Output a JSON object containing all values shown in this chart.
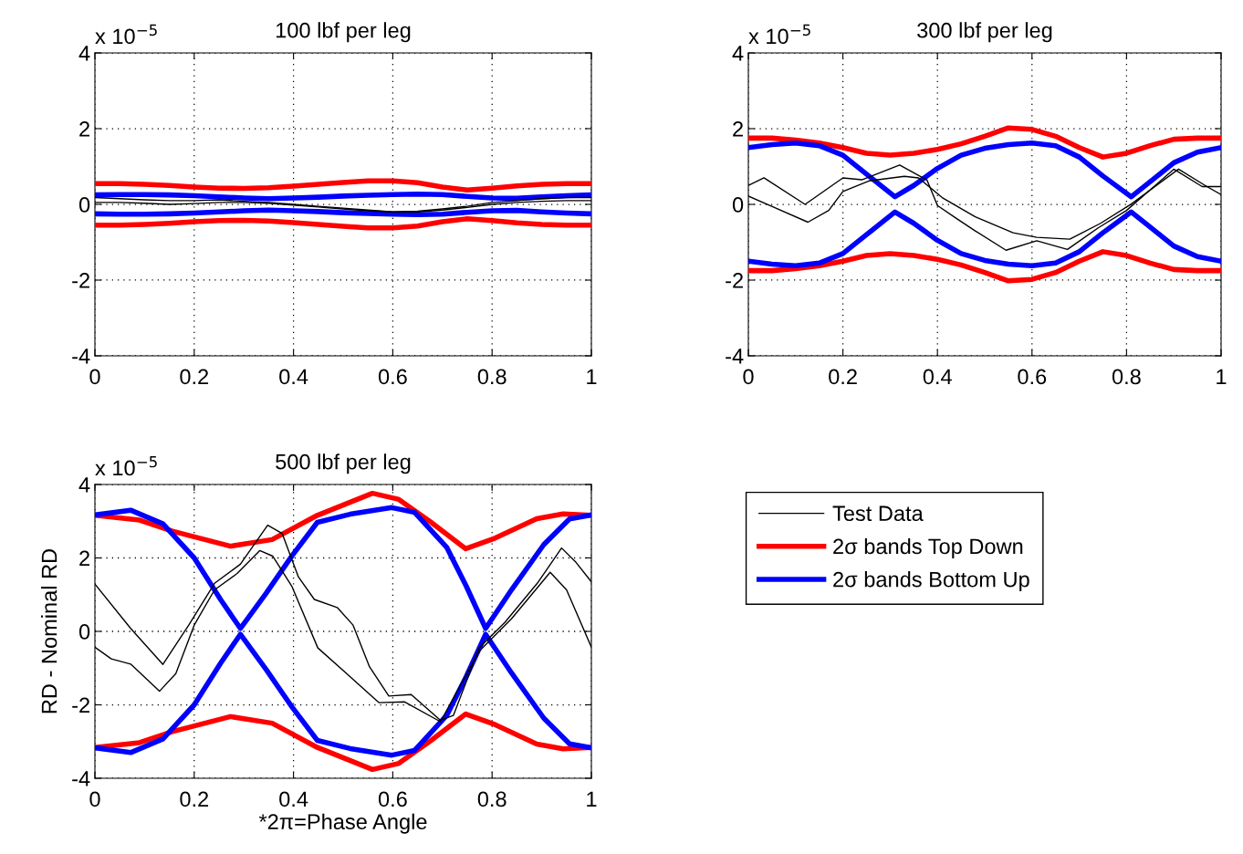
{
  "chart_data": [
    {
      "type": "line",
      "title": "100 lbf per leg",
      "annotations": [
        "x 10$^{−5}$"
      ],
      "xlim": [
        0,
        1
      ],
      "xticks": [
        0,
        0.2,
        0.4,
        0.6,
        0.8,
        1
      ],
      "ylim": [
        -4,
        4
      ],
      "yticks": [
        -4,
        -2,
        0,
        2,
        4
      ],
      "grid": true,
      "legend": false,
      "marker": "none",
      "line_style": "solid",
      "x": [
        0,
        0.05,
        0.1,
        0.15,
        0.2,
        0.25,
        0.3,
        0.35,
        0.4,
        0.45,
        0.5,
        0.55,
        0.6,
        0.65,
        0.7,
        0.75,
        0.8,
        0.85,
        0.9,
        0.95,
        1
      ],
      "series": [
        {
          "color": "#000000",
          "values": [
            0.18,
            0.15,
            0.12,
            0.1,
            0.1,
            0.12,
            0.08,
            0.05,
            0.0,
            -0.05,
            -0.1,
            -0.15,
            -0.2,
            -0.18,
            -0.12,
            -0.05,
            0.05,
            0.1,
            0.15,
            0.18,
            0.18
          ]
        },
        {
          "color": "#000000",
          "values": [
            0.05,
            0.05,
            0.03,
            0.0,
            0.02,
            0.05,
            0.05,
            0.03,
            -0.02,
            -0.07,
            -0.12,
            -0.17,
            -0.2,
            -0.2,
            -0.15,
            -0.08,
            0.0,
            0.05,
            0.08,
            0.1,
            0.1
          ]
        },
        {
          "color": "#ff0000",
          "values": [
            0.55,
            0.55,
            0.53,
            0.5,
            0.46,
            0.43,
            0.42,
            0.44,
            0.48,
            0.53,
            0.58,
            0.62,
            0.62,
            0.57,
            0.46,
            0.38,
            0.43,
            0.49,
            0.53,
            0.55,
            0.55
          ]
        },
        {
          "color": "#ff0000",
          "values": [
            -0.55,
            -0.55,
            -0.53,
            -0.5,
            -0.46,
            -0.43,
            -0.42,
            -0.44,
            -0.48,
            -0.53,
            -0.58,
            -0.62,
            -0.62,
            -0.57,
            -0.46,
            -0.38,
            -0.43,
            -0.49,
            -0.53,
            -0.55,
            -0.55
          ]
        },
        {
          "color": "#0000ff",
          "values": [
            0.25,
            0.26,
            0.26,
            0.25,
            0.23,
            0.2,
            0.17,
            0.15,
            0.17,
            0.19,
            0.22,
            0.24,
            0.26,
            0.27,
            0.26,
            0.21,
            0.17,
            0.16,
            0.2,
            0.23,
            0.25
          ]
        },
        {
          "color": "#0000ff",
          "values": [
            -0.25,
            -0.26,
            -0.26,
            -0.25,
            -0.23,
            -0.2,
            -0.17,
            -0.15,
            -0.17,
            -0.19,
            -0.22,
            -0.24,
            -0.26,
            -0.27,
            -0.26,
            -0.21,
            -0.17,
            -0.16,
            -0.2,
            -0.23,
            -0.25
          ]
        }
      ]
    },
    {
      "type": "line",
      "title": "300 lbf per leg",
      "annotations": [
        "x 10$^{−5}$"
      ],
      "xlim": [
        0,
        1
      ],
      "xticks": [
        0,
        0.2,
        0.4,
        0.6,
        0.8,
        1
      ],
      "ylim": [
        -4,
        4
      ],
      "yticks": [
        -4,
        -2,
        0,
        2,
        4
      ],
      "grid": true,
      "legend": false,
      "marker": "none",
      "line_style": "solid",
      "x": [
        0,
        0.05,
        0.1,
        0.15,
        0.2,
        0.25,
        0.3,
        0.35,
        0.4,
        0.45,
        0.5,
        0.55,
        0.6,
        0.65,
        0.7,
        0.75,
        0.8,
        0.85,
        0.9,
        0.95,
        1
      ],
      "series": [
        {
          "color": "#000000",
          "x": [
            0,
            0.033,
            0.12,
            0.2,
            0.24,
            0.32,
            0.378,
            0.4,
            0.44,
            0.48,
            0.545,
            0.61,
            0.675,
            0.74,
            0.8,
            0.9,
            0.96,
            1
          ],
          "values": [
            0.5,
            0.7,
            0.0,
            0.7,
            0.65,
            1.04,
            0.64,
            -0.03,
            -0.37,
            -0.7,
            -1.21,
            -0.96,
            -1.19,
            -0.62,
            -0.16,
            0.93,
            0.47,
            0.47
          ]
        },
        {
          "color": "#000000",
          "x": [
            0,
            0.055,
            0.126,
            0.17,
            0.2,
            0.255,
            0.33,
            0.36,
            0.41,
            0.48,
            0.56,
            0.61,
            0.68,
            0.745,
            0.81,
            0.91,
            0.97,
            1
          ],
          "values": [
            0.22,
            -0.08,
            -0.47,
            -0.16,
            0.34,
            0.62,
            0.74,
            0.7,
            0.18,
            -0.33,
            -0.75,
            -0.87,
            -0.92,
            -0.5,
            0.01,
            0.93,
            0.47,
            0.26
          ]
        },
        {
          "color": "#ff0000",
          "values": [
            1.75,
            1.75,
            1.7,
            1.62,
            1.5,
            1.35,
            1.3,
            1.35,
            1.45,
            1.6,
            1.8,
            2.02,
            1.98,
            1.8,
            1.5,
            1.25,
            1.35,
            1.55,
            1.72,
            1.75,
            1.75
          ]
        },
        {
          "color": "#ff0000",
          "values": [
            -1.75,
            -1.75,
            -1.7,
            -1.62,
            -1.5,
            -1.35,
            -1.3,
            -1.35,
            -1.45,
            -1.6,
            -1.8,
            -2.02,
            -1.98,
            -1.8,
            -1.5,
            -1.25,
            -1.35,
            -1.55,
            -1.72,
            -1.75,
            -1.75
          ]
        },
        {
          "color": "#0000ff",
          "x": [
            0,
            0.05,
            0.1,
            0.15,
            0.2,
            0.25,
            0.31,
            0.35,
            0.4,
            0.45,
            0.5,
            0.55,
            0.6,
            0.65,
            0.7,
            0.75,
            0.81,
            0.85,
            0.9,
            0.95,
            1
          ],
          "values": [
            1.5,
            1.58,
            1.62,
            1.55,
            1.3,
            0.8,
            0.2,
            0.5,
            0.95,
            1.3,
            1.48,
            1.58,
            1.62,
            1.55,
            1.25,
            0.75,
            0.2,
            0.6,
            1.1,
            1.38,
            1.5
          ]
        },
        {
          "color": "#0000ff",
          "x": [
            0,
            0.05,
            0.1,
            0.15,
            0.2,
            0.25,
            0.31,
            0.35,
            0.4,
            0.45,
            0.5,
            0.55,
            0.6,
            0.65,
            0.7,
            0.75,
            0.81,
            0.85,
            0.9,
            0.95,
            1
          ],
          "values": [
            -1.5,
            -1.58,
            -1.62,
            -1.55,
            -1.3,
            -0.8,
            -0.2,
            -0.5,
            -0.95,
            -1.3,
            -1.48,
            -1.58,
            -1.62,
            -1.55,
            -1.25,
            -0.75,
            -0.2,
            -0.6,
            -1.1,
            -1.38,
            -1.5
          ]
        }
      ]
    },
    {
      "type": "line",
      "title": "500 lbf per leg",
      "xlabel": "*2π=Phase Angle",
      "ylabel": "RD - Nominal RD",
      "annotations": [
        "x 10$^{−5}$"
      ],
      "xlim": [
        0,
        1
      ],
      "xticks": [
        0,
        0.2,
        0.4,
        0.6,
        0.8,
        1
      ],
      "ylim": [
        -4,
        4
      ],
      "yticks": [
        -4,
        -2,
        0,
        2,
        4
      ],
      "grid": true,
      "legend": "right",
      "marker": "none",
      "line_style": "solid",
      "series": [
        {
          "name": "Test Data",
          "color": "#000000",
          "x": [
            0,
            0.072,
            0.137,
            0.189,
            0.241,
            0.293,
            0.348,
            0.377,
            0.41,
            0.442,
            0.488,
            0.52,
            0.553,
            0.592,
            0.637,
            0.696,
            0.722,
            0.774,
            0.826,
            0.891,
            0.94,
            0.969,
            1
          ],
          "values": [
            1.29,
            0.08,
            -0.9,
            0.17,
            1.31,
            1.83,
            2.89,
            2.67,
            1.48,
            0.87,
            0.65,
            0.17,
            -0.96,
            -1.76,
            -1.72,
            -2.42,
            -2.29,
            -0.45,
            0.25,
            1.31,
            2.27,
            1.88,
            1.35
          ]
        },
        {
          "color": "#000000",
          "x": [
            0,
            0.033,
            0.072,
            0.13,
            0.163,
            0.2,
            0.241,
            0.286,
            0.332,
            0.358,
            0.397,
            0.449,
            0.507,
            0.572,
            0.624,
            0.696,
            0.774,
            0.839,
            0.917,
            0.95,
            1
          ],
          "values": [
            -0.43,
            -0.75,
            -0.89,
            -1.63,
            -1.15,
            0.17,
            1.13,
            1.57,
            2.2,
            2.05,
            1.22,
            -0.45,
            -1.15,
            -1.94,
            -1.92,
            -2.46,
            -0.54,
            0.34,
            1.61,
            1.13,
            -0.43
          ]
        },
        {
          "name": "2σ bands Top Down",
          "color": "#ff0000",
          "x": [
            0,
            0.09,
            0.156,
            0.273,
            0.357,
            0.448,
            0.559,
            0.611,
            0.676,
            0.747,
            0.806,
            0.89,
            0.943,
            1
          ],
          "values": [
            3.16,
            3.03,
            2.73,
            2.32,
            2.5,
            3.16,
            3.76,
            3.6,
            2.98,
            2.25,
            2.54,
            3.07,
            3.2,
            3.16
          ]
        },
        {
          "color": "#ff0000",
          "x": [
            0,
            0.09,
            0.156,
            0.273,
            0.357,
            0.448,
            0.559,
            0.611,
            0.676,
            0.747,
            0.806,
            0.89,
            0.943,
            1
          ],
          "values": [
            -3.16,
            -3.03,
            -2.73,
            -2.32,
            -2.5,
            -3.16,
            -3.76,
            -3.6,
            -2.98,
            -2.25,
            -2.54,
            -3.07,
            -3.2,
            -3.16
          ]
        },
        {
          "name": "2σ bands Bottom Up",
          "color": "#0000ff",
          "x": [
            0,
            0.072,
            0.137,
            0.2,
            0.253,
            0.293,
            0.345,
            0.397,
            0.448,
            0.514,
            0.598,
            0.644,
            0.709,
            0.748,
            0.787,
            0.839,
            0.904,
            0.956,
            1
          ],
          "values": [
            3.17,
            3.3,
            2.93,
            2.0,
            0.87,
            0.08,
            1.04,
            2.06,
            2.97,
            3.19,
            3.37,
            3.24,
            2.28,
            1.23,
            0.08,
            1.13,
            2.36,
            3.06,
            3.17
          ]
        },
        {
          "color": "#0000ff",
          "x": [
            0,
            0.072,
            0.137,
            0.2,
            0.253,
            0.293,
            0.345,
            0.397,
            0.448,
            0.514,
            0.598,
            0.644,
            0.709,
            0.748,
            0.787,
            0.839,
            0.904,
            0.956,
            1
          ],
          "values": [
            -3.17,
            -3.3,
            -2.93,
            -2.0,
            -0.87,
            -0.08,
            -1.04,
            -2.06,
            -2.97,
            -3.19,
            -3.37,
            -3.24,
            -2.28,
            -1.23,
            -0.08,
            -1.13,
            -2.36,
            -3.06,
            -3.17
          ]
        }
      ]
    }
  ]
}
